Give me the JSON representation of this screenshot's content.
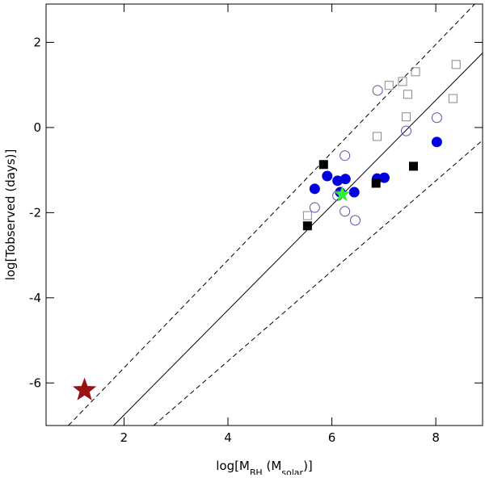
{
  "chart_data": {
    "type": "scatter",
    "xlabel": [
      "log[M",
      "BH",
      " (M",
      "solar",
      ")]"
    ],
    "ylabel": "log[Tobserved (days)]",
    "xlim": [
      0.5,
      8.9
    ],
    "ylim": [
      -7,
      2.9
    ],
    "xticks": [
      2,
      4,
      6,
      8
    ],
    "yticks": [
      -6,
      -4,
      -2,
      0,
      2
    ],
    "lines": [
      {
        "dash": false,
        "x": [
          1.8,
          8.9
        ],
        "y": [
          -7,
          1.75
        ]
      },
      {
        "dash": true,
        "x": [
          0.93,
          8.75
        ],
        "y": [
          -7,
          2.9
        ]
      },
      {
        "dash": true,
        "x": [
          2.57,
          8.9
        ],
        "y": [
          -7,
          -0.3
        ]
      }
    ],
    "series": [
      {
        "marker": "circle",
        "color": "#0000dd",
        "filled": true,
        "x": [
          5.67,
          5.91,
          6.11,
          6.16,
          6.26,
          6.43,
          6.87,
          7.01,
          8.02
        ],
        "values": [
          -1.44,
          -1.14,
          -1.25,
          -1.52,
          -1.21,
          -1.52,
          -1.2,
          -1.18,
          -0.34
        ]
      },
      {
        "marker": "circle",
        "color": "#5555aa",
        "filled": false,
        "x": [
          5.67,
          6.11,
          6.25,
          6.25,
          6.45,
          6.88,
          7.43,
          8.02
        ],
        "values": [
          -1.88,
          -1.6,
          -0.66,
          -1.97,
          -2.18,
          0.87,
          -0.08,
          0.23
        ]
      },
      {
        "marker": "square",
        "color": "#000000",
        "filled": true,
        "x": [
          5.53,
          5.84,
          6.85,
          7.57
        ],
        "values": [
          -2.31,
          -0.87,
          -1.31,
          -0.91
        ]
      },
      {
        "marker": "square",
        "color": "#888888",
        "filled": false,
        "x": [
          5.53,
          6.87,
          7.1,
          7.36,
          7.46,
          7.43,
          7.61,
          8.33,
          8.39
        ],
        "values": [
          -2.07,
          -0.21,
          0.99,
          1.08,
          0.78,
          0.25,
          1.31,
          0.68,
          1.48
        ]
      },
      {
        "marker": "star",
        "color": "#33ee33",
        "filled": true,
        "size": 9,
        "x": [
          6.2
        ],
        "values": [
          -1.57
        ]
      },
      {
        "marker": "star",
        "color": "#991111",
        "filled": true,
        "size": 14,
        "x": [
          1.24
        ],
        "values": [
          -6.17
        ]
      }
    ]
  }
}
